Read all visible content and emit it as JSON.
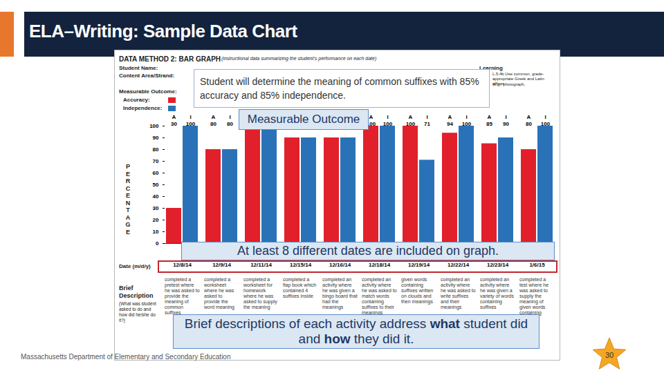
{
  "chart_data": {
    "type": "bar",
    "y_label": "PERCENTAGE",
    "categories": [
      "12/8/14",
      "12/9/14",
      "12/11/14",
      "12/15/14",
      "12/16/14",
      "12/18/14",
      "12/19/14",
      "12/22/14",
      "12/23/14",
      "1/6/15"
    ],
    "series": [
      {
        "name": "Accuracy:",
        "tag": "A",
        "color": "#e2202b",
        "values": [
          30,
          80,
          100,
          90,
          90,
          100,
          100,
          94,
          85,
          80
        ]
      },
      {
        "name": "Independence:",
        "tag": "I",
        "color": "#2a72b8",
        "values": [
          100,
          80,
          100,
          90,
          90,
          100,
          71,
          100,
          90,
          100
        ]
      }
    ],
    "ylim": [
      0,
      100
    ],
    "yticks": [
      0,
      10,
      20,
      30,
      40,
      50,
      60,
      70,
      80,
      90,
      100
    ],
    "grid": false,
    "data_labels": true
  },
  "slide": {
    "title": "ELA–Writing: Sample Data Chart",
    "footer": "Massachusetts Department of Elementary and Secondary Education",
    "page_number": 30
  },
  "form": {
    "heading": "DATA METHOD 2: BAR GRAPH",
    "heading_note": "(instructional data summarizing the student's performance on each date)",
    "fields": [
      "Student Name:",
      "Content Area/Strand:"
    ],
    "learning_label": "Learning",
    "learning_text": "L.5.4b Use common, grade-appropriate Greek and Latin affixes",
    "learning_note": "(e.g., photograph,",
    "outcome_label": "Measurable Outcome:",
    "date_label": "Date (m/d/y)",
    "description_label": "Brief Description",
    "description_note": "(What was student asked to do and how did he/she do it?)",
    "descriptions": [
      "completed a pretest where he was asked to provide the meaning of common suffixes",
      "completed a worksheet where he was asked to provide the word meaning",
      "completed a worksheet for homework where he was asked to supply the meaning",
      "completed a flap book which contained 4 suffixes inside",
      "completed an activity where he was given a bingo board that had the meanings",
      "completed an activity where he was asked to match words containing suffixes to their meanings",
      "given words containing suffixes written on clouds and then meanings",
      "completed an activity where he was asked to write suffixes and their meanings",
      "completed an activity where he was given a variety of words containing suffixes",
      "completed a test where he was asked to supply the meaning of given words containing suffixes"
    ]
  },
  "callouts": {
    "outcome_text": "Student will determine the meaning of common suffixes with 85% accuracy and 85% independence.",
    "outcome_tag": "Measurable Outcome",
    "dates_note": "At least 8 different dates are included on graph.",
    "descriptions_note": [
      {
        "text": "Brief descriptions of each activity address ",
        "emphasis": false
      },
      {
        "text": "what",
        "emphasis": true
      },
      {
        "text": " student did and ",
        "emphasis": false
      },
      {
        "text": "how",
        "emphasis": true
      },
      {
        "text": " they did it.",
        "emphasis": false
      }
    ]
  }
}
